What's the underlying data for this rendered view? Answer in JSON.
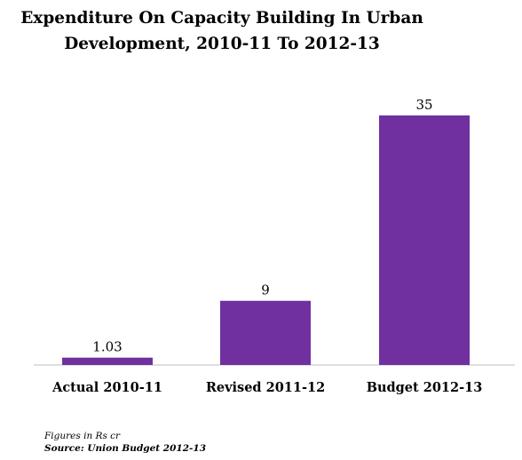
{
  "title_line1": "Expenditure On Capacity Building In Urban",
  "title_line2": "Development, 2010-11 To 2012-13",
  "footnote": "Figures in Rs cr",
  "source": "Source: Union Budget 2012-13",
  "colors": {
    "bar": "#7030A0",
    "axis": "#bfbfbf"
  },
  "chart_data": {
    "type": "bar",
    "title": "Expenditure On Capacity Building In Urban Development, 2010-11 To 2012-13",
    "categories": [
      "Actual 2010-11",
      "Revised 2011-12",
      "Budget 2012-13"
    ],
    "values": [
      1.03,
      9,
      35
    ],
    "data_labels": [
      "1.03",
      "9",
      "35"
    ],
    "ylim": [
      0,
      35
    ],
    "grid": false,
    "legend": "none"
  }
}
